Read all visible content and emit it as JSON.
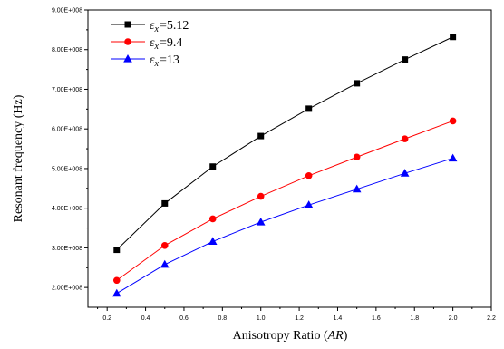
{
  "chart_data": {
    "type": "line",
    "title": "",
    "xlabel_prefix": "Anisotropy Ratio (",
    "xlabel_italic": "AR",
    "xlabel_suffix": ")",
    "ylabel": "Resonant frequency (Hz)",
    "xlim": [
      0.1,
      2.2
    ],
    "ylim": [
      150000000,
      900000000
    ],
    "x_ticks": [
      0.2,
      0.4,
      0.6,
      0.8,
      1.0,
      1.2,
      1.4,
      1.6,
      1.8,
      2.0,
      2.2
    ],
    "x_tick_labels": [
      "0.2",
      "0.4",
      "0.6",
      "0.8",
      "1.0",
      "1.2",
      "1.4",
      "1.6",
      "1.8",
      "2.0",
      "2.2"
    ],
    "y_ticks": [
      200000000,
      300000000,
      400000000,
      500000000,
      600000000,
      700000000,
      800000000,
      900000000
    ],
    "y_tick_labels": [
      "2.00E+008",
      "3.00E+008",
      "4.00E+008",
      "5.00E+008",
      "6.00E+008",
      "7.00E+008",
      "8.00E+008",
      "9.00E+008"
    ],
    "x": [
      0.25,
      0.5,
      0.75,
      1.0,
      1.25,
      1.5,
      1.75,
      2.0
    ],
    "grid": false,
    "legend_placement": "top-left",
    "series": [
      {
        "symbol": "ε",
        "subscript": "x",
        "value_text": "=5.12",
        "color": "#000000",
        "marker": "square",
        "values": [
          295000000,
          412000000,
          505000000,
          582000000,
          651000000,
          715000000,
          775000000,
          832000000
        ]
      },
      {
        "symbol": "ε",
        "subscript": "x",
        "value_text": "=9.4",
        "color": "#ff0000",
        "marker": "circle",
        "values": [
          218000000,
          306000000,
          373000000,
          430000000,
          482000000,
          529000000,
          575000000,
          620000000
        ]
      },
      {
        "symbol": "ε",
        "subscript": "x",
        "value_text": "=13",
        "color": "#0000ff",
        "marker": "triangle",
        "values": [
          185000000,
          258000000,
          316000000,
          365000000,
          408000000,
          448000000,
          488000000,
          526000000
        ]
      }
    ]
  }
}
